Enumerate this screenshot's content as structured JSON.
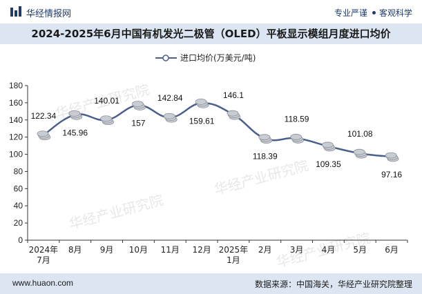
{
  "header": {
    "brand": "华经情报网",
    "slogan_left": "专业严谨",
    "slogan_right": "客观科学"
  },
  "title": "2024-2025年6月中国有机发光二极管（OLED）平板显示模组月度进口均价",
  "chart_data": {
    "type": "line",
    "categories": [
      [
        "2024年",
        "7月"
      ],
      [
        "8月"
      ],
      [
        "9月"
      ],
      [
        "10月"
      ],
      [
        "11月"
      ],
      [
        "12月"
      ],
      [
        "2025年",
        "1月"
      ],
      [
        "2月"
      ],
      [
        "3月"
      ],
      [
        "4月"
      ],
      [
        "5月"
      ],
      [
        "6月"
      ]
    ],
    "series": [
      {
        "name": "进口均价(万美元/吨)",
        "values": [
          122.34,
          145.96,
          140.01,
          157,
          142.84,
          159.61,
          146.1,
          118.39,
          118.59,
          109.35,
          101.08,
          97.16
        ]
      }
    ],
    "data_labels": [
      "122.34",
      "145.96",
      "140.01",
      "157",
      "142.84",
      "159.61",
      "146.1",
      "118.39",
      "118.59",
      "109.35",
      "101.08",
      "97.16"
    ],
    "ylim": [
      0,
      180
    ],
    "yticks": [
      0,
      20,
      40,
      60,
      80,
      100,
      120,
      140,
      160,
      180
    ],
    "grid": false,
    "legend": "top-center",
    "color": "#4a5f8c"
  },
  "watermark": "华经产业研究院",
  "footer": {
    "website": "www.huaon.com",
    "source": "数据来源：中国海关，华经产业研究院整理"
  }
}
